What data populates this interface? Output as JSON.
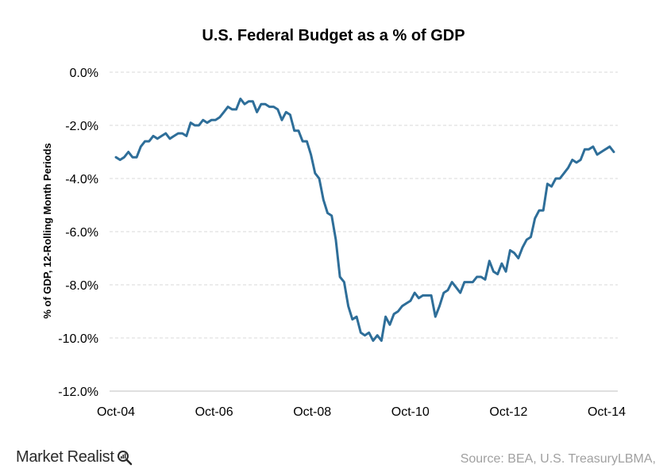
{
  "chart_data": {
    "type": "line",
    "title": "U.S.  Federal Budget as a %  of GDP",
    "xlabel": "",
    "ylabel": "% of GDP, 12-Rolling Month Periods",
    "ylim": [
      -12.0,
      0.0
    ],
    "yticks": [
      "0.0%",
      "-2.0%",
      "-4.0%",
      "-6.0%",
      "-8.0%",
      "-10.0%",
      "-12.0%"
    ],
    "xticks": [
      "Oct-04",
      "Oct-06",
      "Oct-08",
      "Oct-10",
      "Oct-12",
      "Oct-14"
    ],
    "grid": "horizontal dashed",
    "series_color": "#2e6e99",
    "x_start": "Oct-04",
    "x_step": "1 month",
    "values": [
      -3.2,
      -3.3,
      -3.2,
      -3.0,
      -3.2,
      -3.2,
      -2.8,
      -2.6,
      -2.6,
      -2.4,
      -2.5,
      -2.4,
      -2.3,
      -2.5,
      -2.4,
      -2.3,
      -2.3,
      -2.4,
      -1.9,
      -2.0,
      -2.0,
      -1.8,
      -1.9,
      -1.8,
      -1.8,
      -1.7,
      -1.5,
      -1.3,
      -1.4,
      -1.4,
      -1.0,
      -1.2,
      -1.1,
      -1.1,
      -1.5,
      -1.2,
      -1.2,
      -1.3,
      -1.3,
      -1.4,
      -1.8,
      -1.5,
      -1.6,
      -2.2,
      -2.2,
      -2.6,
      -2.6,
      -3.1,
      -3.8,
      -4.0,
      -4.8,
      -5.3,
      -5.4,
      -6.3,
      -7.7,
      -7.9,
      -8.8,
      -9.3,
      -9.2,
      -9.8,
      -9.9,
      -9.8,
      -10.1,
      -9.9,
      -10.1,
      -9.2,
      -9.5,
      -9.1,
      -9.0,
      -8.8,
      -8.7,
      -8.6,
      -8.3,
      -8.5,
      -8.4,
      -8.4,
      -8.4,
      -9.2,
      -8.8,
      -8.3,
      -8.2,
      -7.9,
      -8.1,
      -8.3,
      -7.9,
      -7.9,
      -7.9,
      -7.7,
      -7.7,
      -7.8,
      -7.1,
      -7.5,
      -7.6,
      -7.2,
      -7.5,
      -6.7,
      -6.8,
      -7.0,
      -6.6,
      -6.3,
      -6.2,
      -5.5,
      -5.2,
      -5.2,
      -4.2,
      -4.3,
      -4.0,
      -4.0,
      -3.8,
      -3.6,
      -3.3,
      -3.4,
      -3.3,
      -2.9,
      -2.9,
      -2.8,
      -3.1,
      -3.0,
      -2.9,
      -2.8,
      -3.0
    ]
  },
  "footer": {
    "brand": "Market Realist",
    "source": "Source: BEA, U.S. TreasuryLBMA,"
  }
}
